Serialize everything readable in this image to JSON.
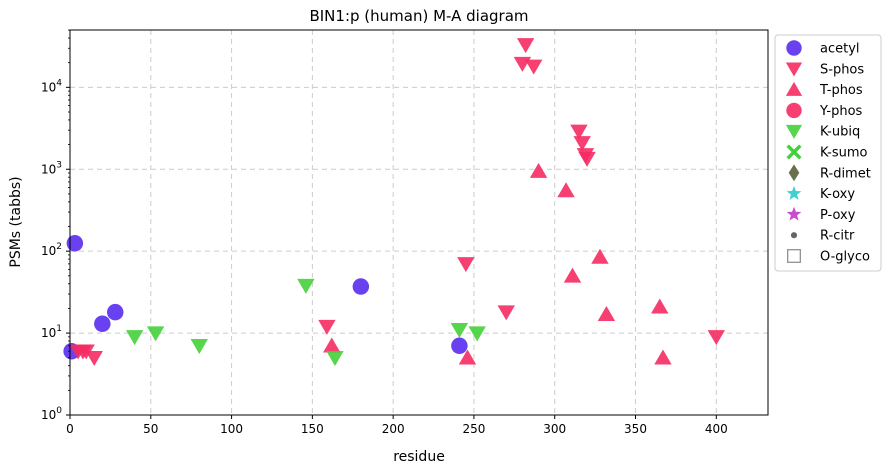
{
  "chart_data": {
    "type": "scatter",
    "title": "BIN1:p (human) M-A diagram",
    "xlabel": "residue",
    "ylabel": "PSMs (tabbs)",
    "xlim": [
      0,
      432
    ],
    "ylim_log10": [
      0,
      4.7
    ],
    "y_scale": "log",
    "grid": true,
    "legend_position": "outside-right",
    "x_ticks": [
      0,
      50,
      100,
      150,
      200,
      250,
      300,
      350,
      400
    ],
    "y_ticks": [
      {
        "value": 1,
        "mantissa": "10",
        "exp": "0"
      },
      {
        "value": 10,
        "mantissa": "10",
        "exp": "1"
      },
      {
        "value": 100,
        "mantissa": "10",
        "exp": "2"
      },
      {
        "value": 1000,
        "mantissa": "10",
        "exp": "3"
      },
      {
        "value": 10000,
        "mantissa": "10",
        "exp": "4"
      }
    ],
    "series": [
      {
        "name": "acetyl",
        "marker": "circle",
        "color": "#5a2cf0",
        "points": [
          [
            1,
            6
          ],
          [
            3,
            125
          ],
          [
            20,
            13
          ],
          [
            28,
            18
          ],
          [
            180,
            37
          ],
          [
            241,
            7
          ]
        ]
      },
      {
        "name": "S-phos",
        "marker": "triangle-down",
        "color": "#f52b63",
        "points": [
          [
            5,
            6
          ],
          [
            8,
            6
          ],
          [
            10,
            6
          ],
          [
            15,
            5
          ],
          [
            159,
            12
          ],
          [
            245,
            70
          ],
          [
            270,
            18
          ],
          [
            280,
            19500
          ],
          [
            282,
            33000
          ],
          [
            287,
            18000
          ],
          [
            315,
            2900
          ],
          [
            317,
            2100
          ],
          [
            319,
            1500
          ],
          [
            320,
            1350
          ],
          [
            400,
            9
          ]
        ]
      },
      {
        "name": "T-phos",
        "marker": "triangle-up",
        "color": "#f52b63",
        "points": [
          [
            162,
            7
          ],
          [
            246,
            5
          ],
          [
            290,
            950
          ],
          [
            307,
            550
          ],
          [
            311,
            50
          ],
          [
            328,
            85
          ],
          [
            332,
            17
          ],
          [
            365,
            21
          ],
          [
            367,
            5
          ]
        ]
      },
      {
        "name": "Y-phos",
        "marker": "circle",
        "color": "#f52b63",
        "points": []
      },
      {
        "name": "K-ubiq",
        "marker": "triangle-down",
        "color": "#44d03a",
        "points": [
          [
            40,
            9
          ],
          [
            53,
            10
          ],
          [
            80,
            7
          ],
          [
            146,
            38
          ],
          [
            164,
            5
          ],
          [
            241,
            11
          ],
          [
            252,
            10
          ]
        ]
      },
      {
        "name": "K-sumo",
        "marker": "x",
        "color": "#44d03a",
        "points": []
      },
      {
        "name": "R-dimet",
        "marker": "diamond",
        "color": "#6b6f4c",
        "points": []
      },
      {
        "name": "K-oxy",
        "marker": "star",
        "color": "#3fd0d0",
        "points": []
      },
      {
        "name": "P-oxy",
        "marker": "star",
        "color": "#c84cd0",
        "points": []
      },
      {
        "name": "R-citr",
        "marker": "dot",
        "color": "#666666",
        "points": []
      },
      {
        "name": "O-glyco",
        "marker": "square-open",
        "color": "#888888",
        "points": []
      }
    ]
  }
}
